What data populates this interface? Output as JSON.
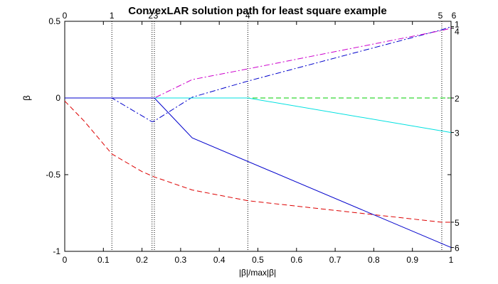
{
  "chart_data": {
    "type": "line",
    "title": "ConvexLAR solution path for least square example",
    "xlabel": "|β|/max|β|",
    "ylabel": "β",
    "xlim": [
      0,
      1
    ],
    "ylim": [
      -1,
      0.5
    ],
    "x_ticks": [
      "0",
      "0.1",
      "0.2",
      "0.3",
      "0.4",
      "0.5",
      "0.6",
      "0.7",
      "0.8",
      "0.9",
      "1"
    ],
    "y_ticks": [
      "-1",
      "-0.5",
      "0",
      "0.5"
    ],
    "steps": [
      {
        "x": 0,
        "label": "0"
      },
      {
        "x": 0.122,
        "label": "1"
      },
      {
        "x": 0.226,
        "label": "2"
      },
      {
        "x": 0.232,
        "label": "3"
      },
      {
        "x": 0.474,
        "label": "4"
      },
      {
        "x": 0.976,
        "label": "5"
      },
      {
        "x": 1.0,
        "label": "6"
      }
    ],
    "series": [
      {
        "label": "1",
        "color": "#0000cc",
        "dash": "dashdot",
        "points": [
          [
            0,
            0
          ],
          [
            0.122,
            0
          ],
          [
            0.226,
            -0.155
          ],
          [
            0.232,
            -0.15
          ],
          [
            0.33,
            0.005
          ],
          [
            0.474,
            0.11
          ],
          [
            0.976,
            0.445
          ],
          [
            1,
            0.465
          ]
        ]
      },
      {
        "label": "2",
        "color": "#00cc00",
        "dash": "dash",
        "points": [
          [
            0,
            0
          ],
          [
            0.474,
            0
          ],
          [
            1,
            0
          ]
        ]
      },
      {
        "label": "3",
        "color": "#00e0e0",
        "dash": "solid",
        "points": [
          [
            0,
            0
          ],
          [
            0.474,
            0
          ],
          [
            1,
            -0.225
          ]
        ]
      },
      {
        "label": "4",
        "color": "#cc00cc",
        "dash": "dashdot",
        "points": [
          [
            0,
            0
          ],
          [
            0.232,
            0
          ],
          [
            0.33,
            0.12
          ],
          [
            0.474,
            0.19
          ],
          [
            0.976,
            0.44
          ],
          [
            1,
            0.455
          ]
        ]
      },
      {
        "label": "5",
        "color": "#dd0000",
        "dash": "dash",
        "points": [
          [
            0,
            -0.02
          ],
          [
            0.05,
            -0.15
          ],
          [
            0.122,
            -0.365
          ],
          [
            0.2,
            -0.48
          ],
          [
            0.232,
            -0.515
          ],
          [
            0.33,
            -0.6
          ],
          [
            0.474,
            -0.67
          ],
          [
            0.6,
            -0.705
          ],
          [
            0.976,
            -0.81
          ],
          [
            1,
            -0.81
          ]
        ]
      },
      {
        "label": "6",
        "color": "#0000cc",
        "dash": "solid",
        "points": [
          [
            0,
            0
          ],
          [
            0.232,
            0
          ],
          [
            0.33,
            -0.26
          ],
          [
            1,
            -0.975
          ]
        ]
      }
    ]
  }
}
